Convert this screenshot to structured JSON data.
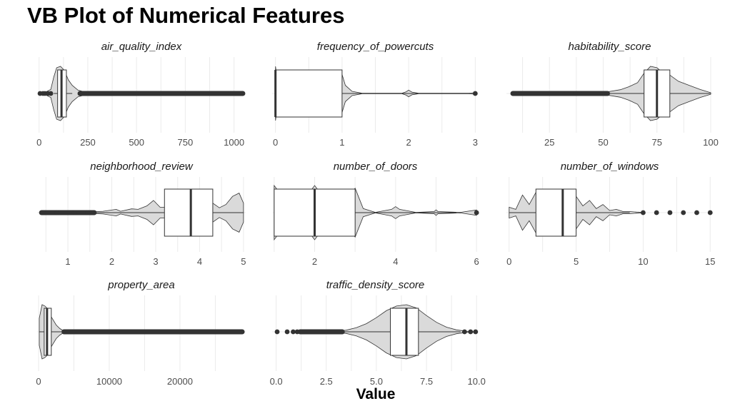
{
  "title": "VB Plot of Numerical Features",
  "xlabel": "Value",
  "colors": {
    "violin_fill": "#dadada",
    "box_fill": "#ffffff",
    "outline": "#333333",
    "grid": "#ebebeb",
    "outlier": "#333333"
  },
  "chart_data": {
    "type": "violin-box",
    "panels": [
      {
        "name": "air_quality_index",
        "xlim": [
          -10,
          1060
        ],
        "ticks": [
          0,
          250,
          500,
          750,
          1000
        ],
        "tick_labels": [
          "0",
          "250",
          "500",
          "750",
          "1000"
        ],
        "box": {
          "q1": 95,
          "median": 115,
          "q3": 140,
          "whisker_low": 75,
          "whisker_high": 170
        },
        "outliers_range": [
          210,
          1045
        ],
        "outliers_points": [
          5,
          20,
          30,
          45,
          60
        ],
        "violin": [
          [
            0,
            0.02
          ],
          [
            30,
            0.04
          ],
          [
            60,
            0.15
          ],
          [
            75,
            0.6
          ],
          [
            90,
            0.95
          ],
          [
            110,
            1.0
          ],
          [
            130,
            0.85
          ],
          [
            150,
            0.5
          ],
          [
            170,
            0.3
          ],
          [
            200,
            0.12
          ],
          [
            250,
            0.03
          ],
          [
            500,
            0.015
          ],
          [
            1045,
            0.005
          ]
        ]
      },
      {
        "name": "frequency_of_powercuts",
        "xlim": [
          -0.05,
          3.05
        ],
        "ticks": [
          0,
          1,
          2,
          3
        ],
        "tick_labels": [
          "0",
          "1",
          "2",
          "3"
        ],
        "box": {
          "q1": 0,
          "median": 0,
          "q3": 1,
          "whisker_low": 0,
          "whisker_high": 2.5
        },
        "outliers_range": null,
        "outliers_points": [
          3
        ],
        "violin": [
          [
            0,
            1.0
          ],
          [
            0.04,
            0.35
          ],
          [
            0.1,
            0.05
          ],
          [
            0.9,
            0.05
          ],
          [
            0.97,
            0.3
          ],
          [
            1.0,
            0.7
          ],
          [
            1.05,
            0.3
          ],
          [
            1.15,
            0.08
          ],
          [
            1.3,
            0.01
          ],
          [
            1.9,
            0.01
          ],
          [
            1.96,
            0.06
          ],
          [
            2.0,
            0.12
          ],
          [
            2.05,
            0.05
          ],
          [
            2.15,
            0.01
          ],
          [
            2.9,
            0.01
          ],
          [
            2.98,
            0.02
          ],
          [
            3.0,
            0.01
          ]
        ]
      },
      {
        "name": "habitability_score",
        "xlim": [
          5,
          101
        ],
        "ticks": [
          25,
          50,
          75,
          100
        ],
        "tick_labels": [
          "25",
          "50",
          "75",
          "100"
        ],
        "box": {
          "q1": 69,
          "median": 75,
          "q3": 81,
          "whisker_low": 52,
          "whisker_high": 100
        },
        "outliers_range": [
          8,
          52
        ],
        "outliers_points": [
          33,
          37,
          41
        ],
        "violin": [
          [
            52,
            0.06
          ],
          [
            58,
            0.14
          ],
          [
            62,
            0.25
          ],
          [
            66,
            0.4
          ],
          [
            69,
            0.75
          ],
          [
            72,
            1.0
          ],
          [
            75,
            0.95
          ],
          [
            78,
            0.75
          ],
          [
            81,
            0.68
          ],
          [
            85,
            0.45
          ],
          [
            90,
            0.3
          ],
          [
            95,
            0.15
          ],
          [
            100,
            0.03
          ]
        ]
      },
      {
        "name": "neighborhood_review",
        "xlim": [
          0.3,
          5.05
        ],
        "ticks": [
          1,
          2,
          3,
          4,
          5
        ],
        "tick_labels": [
          "1",
          "2",
          "3",
          "4",
          "5"
        ],
        "box": {
          "q1": 3.2,
          "median": 3.8,
          "q3": 4.3,
          "whisker_low": 1.6,
          "whisker_high": 5.0
        },
        "outliers_range": [
          0.4,
          1.6
        ],
        "outliers_points": [
          0.45,
          0.75,
          1.15,
          1.45
        ],
        "violin": [
          [
            1.5,
            0.03
          ],
          [
            1.8,
            0.05
          ],
          [
            2.1,
            0.12
          ],
          [
            2.2,
            0.05
          ],
          [
            2.45,
            0.14
          ],
          [
            2.6,
            0.12
          ],
          [
            2.8,
            0.25
          ],
          [
            2.95,
            0.45
          ],
          [
            3.1,
            0.2
          ],
          [
            3.2,
            0.2
          ],
          [
            3.35,
            0.55
          ],
          [
            3.5,
            0.25
          ],
          [
            3.7,
            0.6
          ],
          [
            3.85,
            0.3
          ],
          [
            4.0,
            0.6
          ],
          [
            4.15,
            0.72
          ],
          [
            4.3,
            0.35
          ],
          [
            4.45,
            0.18
          ],
          [
            4.6,
            0.3
          ],
          [
            4.75,
            0.6
          ],
          [
            4.9,
            0.72
          ],
          [
            5.0,
            0.35
          ]
        ]
      },
      {
        "name": "number_of_doors",
        "xlim": [
          0.95,
          6.05
        ],
        "ticks": [
          2,
          4,
          6
        ],
        "tick_labels": [
          "2",
          "4",
          "6"
        ],
        "box": {
          "q1": 1,
          "median": 2,
          "q3": 3,
          "whisker_low": 1,
          "whisker_high": 5.5
        },
        "outliers_range": null,
        "outliers_points": [
          6
        ],
        "violin": [
          [
            1.0,
            1.0
          ],
          [
            1.5,
            0.02
          ],
          [
            2.0,
            1.0
          ],
          [
            2.5,
            0.02
          ],
          [
            3.0,
            0.9
          ],
          [
            3.2,
            0.15
          ],
          [
            3.5,
            0.01
          ],
          [
            3.9,
            0.12
          ],
          [
            4.0,
            0.22
          ],
          [
            4.1,
            0.12
          ],
          [
            4.5,
            0.01
          ],
          [
            4.95,
            0.04
          ],
          [
            5.0,
            0.1
          ],
          [
            5.05,
            0.04
          ],
          [
            5.6,
            0.01
          ],
          [
            6.0,
            0.1
          ]
        ]
      },
      {
        "name": "number_of_windows",
        "xlim": [
          -0.2,
          15.2
        ],
        "ticks": [
          0,
          5,
          10,
          15
        ],
        "tick_labels": [
          "0",
          "5",
          "10",
          "15"
        ],
        "box": {
          "q1": 2,
          "median": 4,
          "q3": 5,
          "whisker_low": 0,
          "whisker_high": 9
        },
        "outliers_range": null,
        "outliers_points": [
          10,
          11,
          12,
          13,
          14,
          15
        ],
        "violin": [
          [
            0,
            0.2
          ],
          [
            0.5,
            0.12
          ],
          [
            1.0,
            0.65
          ],
          [
            1.5,
            0.3
          ],
          [
            2.0,
            0.75
          ],
          [
            2.5,
            0.35
          ],
          [
            3.0,
            0.82
          ],
          [
            3.5,
            0.4
          ],
          [
            4.0,
            0.72
          ],
          [
            4.5,
            0.35
          ],
          [
            5.0,
            0.6
          ],
          [
            5.5,
            0.25
          ],
          [
            6.0,
            0.45
          ],
          [
            6.5,
            0.15
          ],
          [
            7.0,
            0.3
          ],
          [
            7.5,
            0.08
          ],
          [
            8.0,
            0.12
          ],
          [
            8.5,
            0.04
          ],
          [
            9.0,
            0.04
          ],
          [
            9.5,
            0.02
          ],
          [
            10.0,
            0.01
          ]
        ]
      },
      {
        "name": "property_area",
        "xlim": [
          -200,
          29300
        ],
        "ticks": [
          0,
          10000,
          20000
        ],
        "tick_labels": [
          "0",
          "10000",
          "20000"
        ],
        "box": {
          "q1": 800,
          "median": 1200,
          "q3": 1800,
          "whisker_low": 100,
          "whisker_high": 3500
        },
        "outliers_range": [
          3600,
          28800
        ],
        "outliers_points": [],
        "violin": [
          [
            100,
            0.5
          ],
          [
            500,
            1.0
          ],
          [
            900,
            0.95
          ],
          [
            1300,
            0.85
          ],
          [
            1800,
            0.55
          ],
          [
            2500,
            0.25
          ],
          [
            3000,
            0.12
          ],
          [
            3500,
            0.04
          ]
        ]
      },
      {
        "name": "traffic_density_score",
        "xlim": [
          -0.2,
          10.1
        ],
        "ticks": [
          0,
          2.5,
          5,
          7.5,
          10
        ],
        "tick_labels": [
          "0.0",
          "2.5",
          "5.0",
          "7.5",
          "10.0"
        ],
        "box": {
          "q1": 5.7,
          "median": 6.5,
          "q3": 7.1,
          "whisker_low": 3.3,
          "whisker_high": 9.2
        },
        "outliers_range": [
          1.2,
          3.3
        ],
        "outliers_points": [
          0.05,
          0.55,
          0.85,
          1.05,
          9.4,
          9.7,
          9.95
        ],
        "violin": [
          [
            3.0,
            0.02
          ],
          [
            3.5,
            0.06
          ],
          [
            4.0,
            0.15
          ],
          [
            4.5,
            0.3
          ],
          [
            5.0,
            0.52
          ],
          [
            5.5,
            0.78
          ],
          [
            6.0,
            0.95
          ],
          [
            6.5,
            1.0
          ],
          [
            7.0,
            0.88
          ],
          [
            7.5,
            0.6
          ],
          [
            8.0,
            0.35
          ],
          [
            8.5,
            0.17
          ],
          [
            9.0,
            0.07
          ],
          [
            9.5,
            0.02
          ],
          [
            10.0,
            0.0
          ]
        ]
      }
    ]
  }
}
